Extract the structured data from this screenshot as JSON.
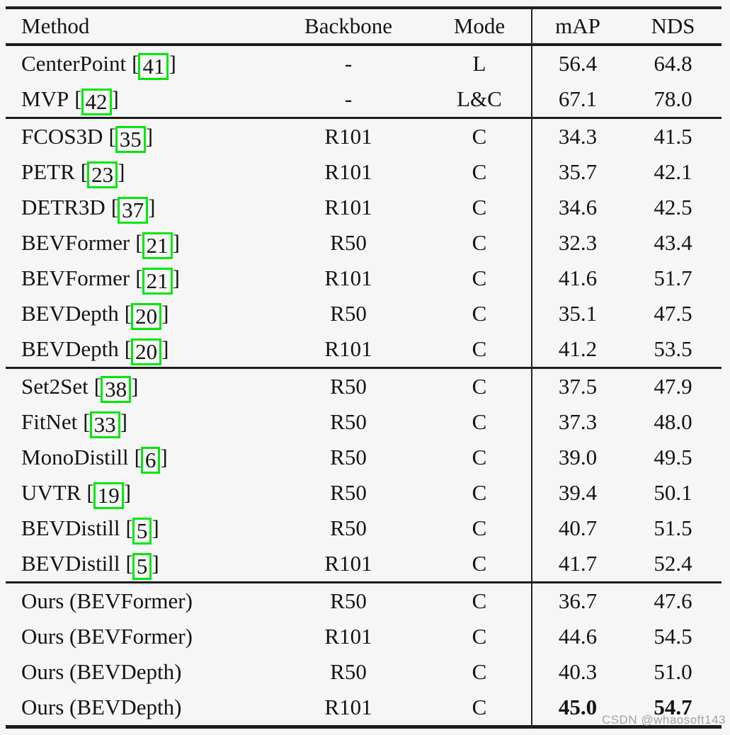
{
  "watermark": "CSDN @whaosoft143",
  "colors": {
    "citation_box": "#00e70b",
    "background": "#f6f6f6",
    "text": "#141414",
    "rule": "#1c1c1c",
    "watermark": "#a2a2a2"
  },
  "table": {
    "columns": [
      "Method",
      "Backbone",
      "Mode",
      "mAP",
      "NDS"
    ],
    "cite_open": "[",
    "cite_close": "]",
    "groups": [
      {
        "rows": [
          {
            "method": "CenterPoint",
            "cite": "41",
            "backbone": "-",
            "mode": "L",
            "map": "56.4",
            "nds": "64.8",
            "bold": false
          },
          {
            "method": "MVP",
            "cite": "42",
            "backbone": "-",
            "mode": "L&C",
            "map": "67.1",
            "nds": "78.0",
            "bold": false
          }
        ]
      },
      {
        "rows": [
          {
            "method": "FCOS3D",
            "cite": "35",
            "backbone": "R101",
            "mode": "C",
            "map": "34.3",
            "nds": "41.5",
            "bold": false
          },
          {
            "method": "PETR",
            "cite": "23",
            "backbone": "R101",
            "mode": "C",
            "map": "35.7",
            "nds": "42.1",
            "bold": false
          },
          {
            "method": "DETR3D",
            "cite": "37",
            "backbone": "R101",
            "mode": "C",
            "map": "34.6",
            "nds": "42.5",
            "bold": false
          },
          {
            "method": "BEVFormer",
            "cite": "21",
            "backbone": "R50",
            "mode": "C",
            "map": "32.3",
            "nds": "43.4",
            "bold": false
          },
          {
            "method": "BEVFormer",
            "cite": "21",
            "backbone": "R101",
            "mode": "C",
            "map": "41.6",
            "nds": "51.7",
            "bold": false
          },
          {
            "method": "BEVDepth",
            "cite": "20",
            "backbone": "R50",
            "mode": "C",
            "map": "35.1",
            "nds": "47.5",
            "bold": false
          },
          {
            "method": "BEVDepth",
            "cite": "20",
            "backbone": "R101",
            "mode": "C",
            "map": "41.2",
            "nds": "53.5",
            "bold": false
          }
        ]
      },
      {
        "rows": [
          {
            "method": "Set2Set",
            "cite": "38",
            "backbone": "R50",
            "mode": "C",
            "map": "37.5",
            "nds": "47.9",
            "bold": false
          },
          {
            "method": "FitNet",
            "cite": "33",
            "backbone": "R50",
            "mode": "C",
            "map": "37.3",
            "nds": "48.0",
            "bold": false
          },
          {
            "method": "MonoDistill",
            "cite": "6",
            "backbone": "R50",
            "mode": "C",
            "map": "39.0",
            "nds": "49.5",
            "bold": false
          },
          {
            "method": "UVTR",
            "cite": "19",
            "backbone": "R50",
            "mode": "C",
            "map": "39.4",
            "nds": "50.1",
            "bold": false
          },
          {
            "method": "BEVDistill",
            "cite": "5",
            "backbone": "R50",
            "mode": "C",
            "map": "40.7",
            "nds": "51.5",
            "bold": false
          },
          {
            "method": "BEVDistill",
            "cite": "5",
            "backbone": "R101",
            "mode": "C",
            "map": "41.7",
            "nds": "52.4",
            "bold": false
          }
        ]
      },
      {
        "rows": [
          {
            "method": "Ours (BEVFormer)",
            "cite": "",
            "backbone": "R50",
            "mode": "C",
            "map": "36.7",
            "nds": "47.6",
            "bold": false
          },
          {
            "method": "Ours (BEVFormer)",
            "cite": "",
            "backbone": "R101",
            "mode": "C",
            "map": "44.6",
            "nds": "54.5",
            "bold": false
          },
          {
            "method": "Ours (BEVDepth)",
            "cite": "",
            "backbone": "R50",
            "mode": "C",
            "map": "40.3",
            "nds": "51.0",
            "bold": false
          },
          {
            "method": "Ours (BEVDepth)",
            "cite": "",
            "backbone": "R101",
            "mode": "C",
            "map": "45.0",
            "nds": "54.7",
            "bold": true
          }
        ]
      }
    ]
  }
}
